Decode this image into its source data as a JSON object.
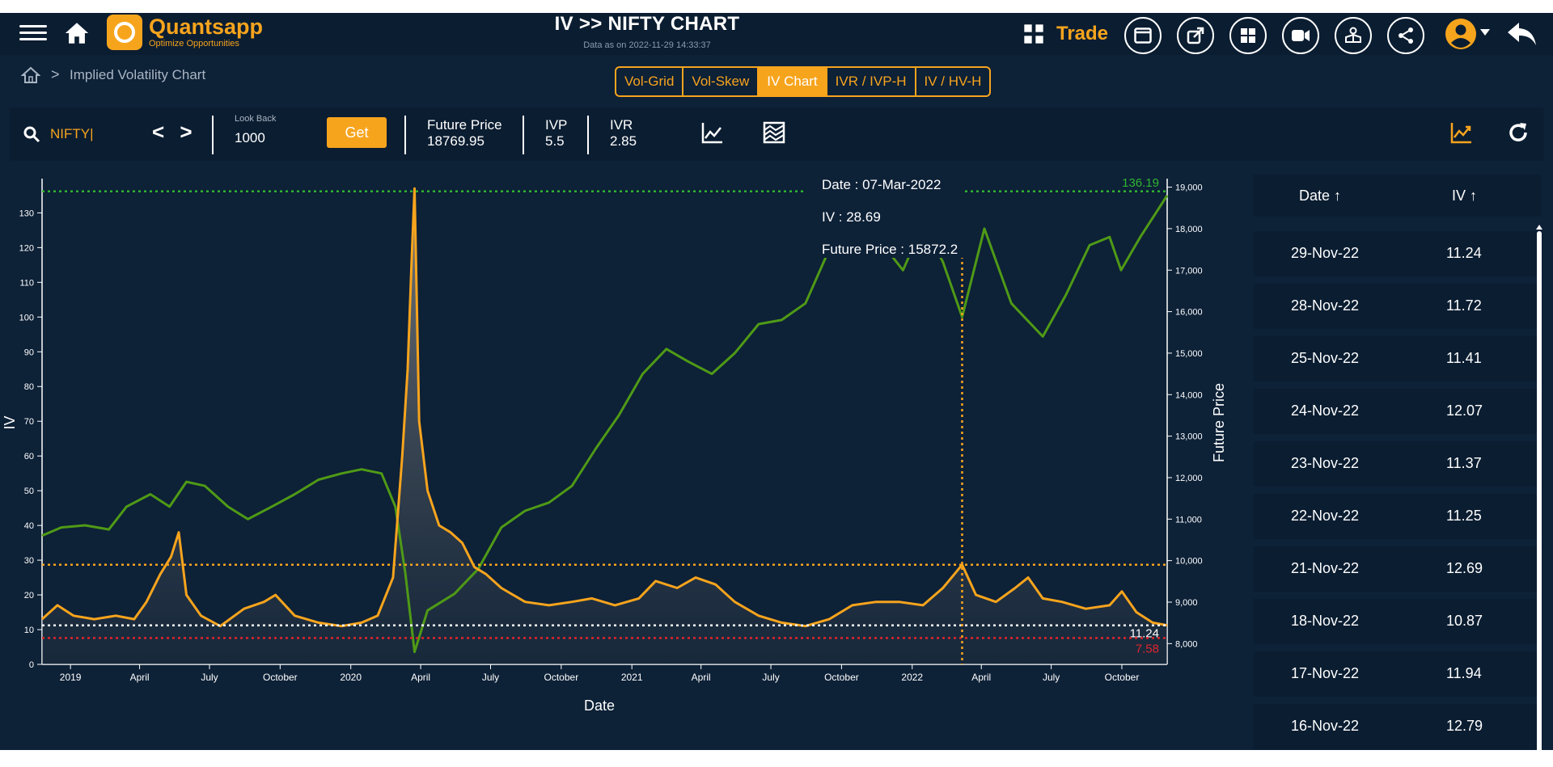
{
  "header": {
    "brand_name": "Quantsapp",
    "brand_tagline": "Optimize Opportunities",
    "title": "IV >> NIFTY CHART",
    "subtitle": "Data as on 2022-11-29 14:33:37",
    "trade_label": "Trade",
    "icons": [
      "menu-icon",
      "home-icon",
      "grid-icon",
      "window-icon",
      "popout-icon",
      "dashboard-icon",
      "video-icon",
      "hands-icon",
      "share-icon",
      "user-icon",
      "back-icon"
    ]
  },
  "breadcrumb": {
    "label": "Implied Volatility Chart"
  },
  "tabs": [
    {
      "label": "Vol-Grid",
      "active": false
    },
    {
      "label": "Vol-Skew",
      "active": false
    },
    {
      "label": "IV Chart",
      "active": true
    },
    {
      "label": "IVR / IVP-H",
      "active": false
    },
    {
      "label": "IV / HV-H",
      "active": false
    }
  ],
  "toolbar": {
    "symbol": "NIFTY|",
    "nav_arrows": "< >",
    "lookback_label": "Look Back",
    "lookback_value": "1000",
    "get_label": "Get",
    "future_price_label": "Future Price",
    "future_price_value": "18769.95",
    "ivp_label": "IVP",
    "ivp_value": "5.5",
    "ivr_label": "IVR",
    "ivr_value": "2.85"
  },
  "tooltip": {
    "date": "Date : 07-Mar-2022",
    "iv": "IV : 28.69",
    "future_price": "Future Price : 15872.2"
  },
  "chart_data": {
    "type": "line",
    "xlabel": "Date",
    "ylabel_left": "IV",
    "ylabel_right": "Future Price",
    "ylim_left": [
      0,
      138
    ],
    "ylim_right": [
      7500,
      19050
    ],
    "x_range": [
      "2018-11-25",
      "2022-11-29"
    ],
    "x_ticks": [
      {
        "date": "2019-01-01",
        "label": "2019"
      },
      {
        "date": "2019-04-01",
        "label": "April"
      },
      {
        "date": "2019-07-01",
        "label": "July"
      },
      {
        "date": "2019-10-01",
        "label": "October"
      },
      {
        "date": "2020-01-01",
        "label": "2020"
      },
      {
        "date": "2020-04-01",
        "label": "April"
      },
      {
        "date": "2020-07-01",
        "label": "July"
      },
      {
        "date": "2020-10-01",
        "label": "October"
      },
      {
        "date": "2021-01-01",
        "label": "2021"
      },
      {
        "date": "2021-04-01",
        "label": "April"
      },
      {
        "date": "2021-07-01",
        "label": "July"
      },
      {
        "date": "2021-10-01",
        "label": "October"
      },
      {
        "date": "2022-01-01",
        "label": "2022"
      },
      {
        "date": "2022-04-01",
        "label": "April"
      },
      {
        "date": "2022-07-01",
        "label": "July"
      },
      {
        "date": "2022-10-01",
        "label": "October"
      }
    ],
    "y_ticks_left": [
      {
        "value": 0,
        "label": "0"
      },
      {
        "value": 10,
        "label": "10"
      },
      {
        "value": 20,
        "label": "20"
      },
      {
        "value": 30,
        "label": "30"
      },
      {
        "value": 40,
        "label": "40"
      },
      {
        "value": 50,
        "label": "50"
      },
      {
        "value": 60,
        "label": "60"
      },
      {
        "value": 70,
        "label": "70"
      },
      {
        "value": 80,
        "label": "80"
      },
      {
        "value": 90,
        "label": "90"
      },
      {
        "value": 100,
        "label": "100"
      },
      {
        "value": 110,
        "label": "110"
      },
      {
        "value": 120,
        "label": "120"
      },
      {
        "value": 130,
        "label": "130"
      }
    ],
    "y_ticks_right": [
      {
        "value": 8000,
        "label": "8,000"
      },
      {
        "value": 9000,
        "label": "9,000"
      },
      {
        "value": 10000,
        "label": "10,000"
      },
      {
        "value": 11000,
        "label": "11,000"
      },
      {
        "value": 12000,
        "label": "12,000"
      },
      {
        "value": 13000,
        "label": "13,000"
      },
      {
        "value": 14000,
        "label": "14,000"
      },
      {
        "value": 15000,
        "label": "15,000"
      },
      {
        "value": 16000,
        "label": "16,000"
      },
      {
        "value": 17000,
        "label": "17,000"
      },
      {
        "value": 18000,
        "label": "18,000"
      },
      {
        "value": 19000,
        "label": "19,000"
      }
    ],
    "iv_color": "#f7a41d",
    "price_color": "#4f9a16",
    "iv_series": {
      "axis": "left",
      "points": [
        [
          "2018-11-25",
          13
        ],
        [
          "2018-12-15",
          17
        ],
        [
          "2019-01-05",
          14
        ],
        [
          "2019-02-01",
          13
        ],
        [
          "2019-03-01",
          14
        ],
        [
          "2019-03-25",
          13
        ],
        [
          "2019-04-10",
          18
        ],
        [
          "2019-04-28",
          26
        ],
        [
          "2019-05-12",
          31
        ],
        [
          "2019-05-22",
          38
        ],
        [
          "2019-06-01",
          20
        ],
        [
          "2019-06-20",
          14
        ],
        [
          "2019-07-15",
          11
        ],
        [
          "2019-08-15",
          16
        ],
        [
          "2019-09-10",
          18
        ],
        [
          "2019-09-25",
          20
        ],
        [
          "2019-10-20",
          14
        ],
        [
          "2019-11-20",
          12
        ],
        [
          "2019-12-20",
          11
        ],
        [
          "2020-01-15",
          12
        ],
        [
          "2020-02-05",
          14
        ],
        [
          "2020-02-25",
          25
        ],
        [
          "2020-03-08",
          60
        ],
        [
          "2020-03-15",
          85
        ],
        [
          "2020-03-20",
          115
        ],
        [
          "2020-03-24",
          137
        ],
        [
          "2020-03-30",
          70
        ],
        [
          "2020-04-10",
          50
        ],
        [
          "2020-04-25",
          40
        ],
        [
          "2020-05-10",
          38
        ],
        [
          "2020-05-25",
          35
        ],
        [
          "2020-06-10",
          28
        ],
        [
          "2020-06-25",
          26
        ],
        [
          "2020-07-15",
          22
        ],
        [
          "2020-08-15",
          18
        ],
        [
          "2020-09-15",
          17
        ],
        [
          "2020-10-15",
          18
        ],
        [
          "2020-11-10",
          19
        ],
        [
          "2020-12-10",
          17
        ],
        [
          "2021-01-10",
          19
        ],
        [
          "2021-02-01",
          24
        ],
        [
          "2021-03-01",
          22
        ],
        [
          "2021-03-25",
          25
        ],
        [
          "2021-04-20",
          23
        ],
        [
          "2021-05-15",
          18
        ],
        [
          "2021-06-15",
          14
        ],
        [
          "2021-07-15",
          12
        ],
        [
          "2021-08-15",
          11
        ],
        [
          "2021-09-15",
          13
        ],
        [
          "2021-10-15",
          17
        ],
        [
          "2021-11-15",
          18
        ],
        [
          "2021-12-15",
          18
        ],
        [
          "2022-01-15",
          17
        ],
        [
          "2022-02-10",
          22
        ],
        [
          "2022-02-25",
          26
        ],
        [
          "2022-03-07",
          28.69
        ],
        [
          "2022-03-25",
          20
        ],
        [
          "2022-04-20",
          18
        ],
        [
          "2022-05-15",
          22
        ],
        [
          "2022-06-01",
          25
        ],
        [
          "2022-06-20",
          19
        ],
        [
          "2022-07-15",
          18
        ],
        [
          "2022-08-15",
          16
        ],
        [
          "2022-09-15",
          17
        ],
        [
          "2022-10-01",
          21
        ],
        [
          "2022-10-20",
          15
        ],
        [
          "2022-11-10",
          12
        ],
        [
          "2022-11-29",
          11.24
        ]
      ]
    },
    "price_series": {
      "axis": "right",
      "points": [
        [
          "2018-11-25",
          10600
        ],
        [
          "2018-12-20",
          10800
        ],
        [
          "2019-01-20",
          10850
        ],
        [
          "2019-02-20",
          10750
        ],
        [
          "2019-03-15",
          11300
        ],
        [
          "2019-04-15",
          11600
        ],
        [
          "2019-05-10",
          11300
        ],
        [
          "2019-06-01",
          11900
        ],
        [
          "2019-06-25",
          11800
        ],
        [
          "2019-07-25",
          11300
        ],
        [
          "2019-08-20",
          11000
        ],
        [
          "2019-09-20",
          11300
        ],
        [
          "2019-10-20",
          11600
        ],
        [
          "2019-11-20",
          11950
        ],
        [
          "2019-12-20",
          12100
        ],
        [
          "2020-01-15",
          12200
        ],
        [
          "2020-02-10",
          12100
        ],
        [
          "2020-02-28",
          11300
        ],
        [
          "2020-03-12",
          9700
        ],
        [
          "2020-03-24",
          7800
        ],
        [
          "2020-04-10",
          8800
        ],
        [
          "2020-05-15",
          9200
        ],
        [
          "2020-06-15",
          9800
        ],
        [
          "2020-07-15",
          10800
        ],
        [
          "2020-08-15",
          11200
        ],
        [
          "2020-09-15",
          11400
        ],
        [
          "2020-10-15",
          11800
        ],
        [
          "2020-11-15",
          12700
        ],
        [
          "2020-12-15",
          13500
        ],
        [
          "2021-01-15",
          14500
        ],
        [
          "2021-02-15",
          15100
        ],
        [
          "2021-03-15",
          14800
        ],
        [
          "2021-04-15",
          14500
        ],
        [
          "2021-05-15",
          15000
        ],
        [
          "2021-06-15",
          15700
        ],
        [
          "2021-07-15",
          15800
        ],
        [
          "2021-08-15",
          16200
        ],
        [
          "2021-09-15",
          17500
        ],
        [
          "2021-10-18",
          18500
        ],
        [
          "2021-11-20",
          17700
        ],
        [
          "2021-12-20",
          17000
        ],
        [
          "2022-01-15",
          18100
        ],
        [
          "2022-02-10",
          17200
        ],
        [
          "2022-03-07",
          15872.2
        ],
        [
          "2022-04-05",
          18000
        ],
        [
          "2022-05-10",
          16200
        ],
        [
          "2022-06-20",
          15400
        ],
        [
          "2022-07-20",
          16400
        ],
        [
          "2022-08-20",
          17600
        ],
        [
          "2022-09-15",
          17800
        ],
        [
          "2022-09-30",
          17000
        ],
        [
          "2022-10-25",
          17800
        ],
        [
          "2022-11-15",
          18400
        ],
        [
          "2022-11-29",
          18800
        ]
      ]
    },
    "reference_lines": [
      {
        "axis": "left",
        "value": 136.19,
        "label": "136.19",
        "color": "#2fb52f"
      },
      {
        "axis": "left",
        "value": 28.69,
        "label": "",
        "color": "#f7a41d"
      },
      {
        "axis": "left",
        "value": 11.24,
        "label": "11.24",
        "color": "#ffffff"
      },
      {
        "axis": "left",
        "value": 7.58,
        "label": "7.58",
        "color": "#e0242b"
      }
    ],
    "crosshair_date": "2022-03-07"
  },
  "side_table": {
    "headers": {
      "date": "Date ↑",
      "iv": "IV ↑"
    },
    "rows": [
      {
        "date": "29-Nov-22",
        "iv": "11.24"
      },
      {
        "date": "28-Nov-22",
        "iv": "11.72"
      },
      {
        "date": "25-Nov-22",
        "iv": "11.41"
      },
      {
        "date": "24-Nov-22",
        "iv": "12.07"
      },
      {
        "date": "23-Nov-22",
        "iv": "11.37"
      },
      {
        "date": "22-Nov-22",
        "iv": "11.25"
      },
      {
        "date": "21-Nov-22",
        "iv": "12.69"
      },
      {
        "date": "18-Nov-22",
        "iv": "10.87"
      },
      {
        "date": "17-Nov-22",
        "iv": "11.94"
      },
      {
        "date": "16-Nov-22",
        "iv": "12.79"
      }
    ]
  }
}
